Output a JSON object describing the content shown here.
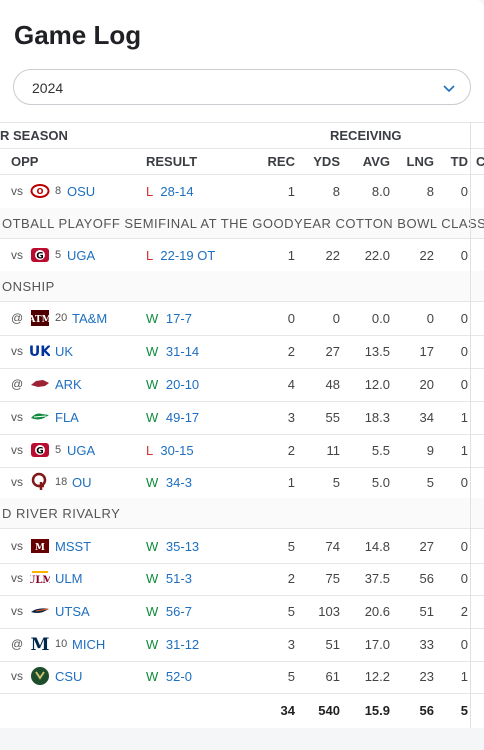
{
  "title": "Game Log",
  "season_select": {
    "value": "2024"
  },
  "headers": {
    "group_left": "R SEASON",
    "group_right": "RECEIVING",
    "opp": "OPP",
    "result": "RESULT",
    "rec": "REC",
    "yds": "YDS",
    "avg": "AVG",
    "lng": "LNG",
    "td": "TD",
    "cut": "C"
  },
  "notes": {
    "n1": "OTBALL PLAYOFF SEMIFINAL AT THE GOODYEAR COTTON BOWL CLASSIC",
    "n2": "ONSHIP",
    "n3": "D RIVER RIVALRY"
  },
  "games": [
    {
      "vs": "vs",
      "logo": "ohio-state-logo",
      "logo_color": "#bb0000",
      "rank": "8",
      "team": "OSU",
      "wl": "L",
      "score": "28-14",
      "rec": "1",
      "yds": "8",
      "avg": "8.0",
      "lng": "8",
      "td": "0"
    },
    {
      "vs": "vs",
      "logo": "georgia-logo",
      "logo_color": "#ba0c2f",
      "rank": "5",
      "team": "UGA",
      "wl": "L",
      "score": "22-19 OT",
      "rec": "1",
      "yds": "22",
      "avg": "22.0",
      "lng": "22",
      "td": "0"
    },
    {
      "vs": "@",
      "logo": "texas-am-logo",
      "logo_color": "#500000",
      "rank": "20",
      "team": "TA&M",
      "wl": "W",
      "score": "17-7",
      "rec": "0",
      "yds": "0",
      "avg": "0.0",
      "lng": "0",
      "td": "0"
    },
    {
      "vs": "vs",
      "logo": "kentucky-logo",
      "logo_color": "#0033a0",
      "rank": "",
      "team": "UK",
      "wl": "W",
      "score": "31-14",
      "rec": "2",
      "yds": "27",
      "avg": "13.5",
      "lng": "17",
      "td": "0"
    },
    {
      "vs": "@",
      "logo": "arkansas-logo",
      "logo_color": "#9d2235",
      "rank": "",
      "team": "ARK",
      "wl": "W",
      "score": "20-10",
      "rec": "4",
      "yds": "48",
      "avg": "12.0",
      "lng": "20",
      "td": "0"
    },
    {
      "vs": "vs",
      "logo": "florida-logo",
      "logo_color": "#0021a5",
      "rank": "",
      "team": "FLA",
      "wl": "W",
      "score": "49-17",
      "rec": "3",
      "yds": "55",
      "avg": "18.3",
      "lng": "34",
      "td": "1"
    },
    {
      "vs": "vs",
      "logo": "georgia-logo",
      "logo_color": "#ba0c2f",
      "rank": "5",
      "team": "UGA",
      "wl": "L",
      "score": "30-15",
      "rec": "2",
      "yds": "11",
      "avg": "5.5",
      "lng": "9",
      "td": "1"
    },
    {
      "vs": "vs",
      "logo": "oklahoma-logo",
      "logo_color": "#841617",
      "rank": "18",
      "team": "OU",
      "wl": "W",
      "score": "34-3",
      "rec": "1",
      "yds": "5",
      "avg": "5.0",
      "lng": "5",
      "td": "0"
    },
    {
      "vs": "vs",
      "logo": "mississippi-state-logo",
      "logo_color": "#660000",
      "rank": "",
      "team": "MSST",
      "wl": "W",
      "score": "35-13",
      "rec": "5",
      "yds": "74",
      "avg": "14.8",
      "lng": "27",
      "td": "0"
    },
    {
      "vs": "vs",
      "logo": "ulm-logo",
      "logo_color": "#840029",
      "rank": "",
      "team": "ULM",
      "wl": "W",
      "score": "51-3",
      "rec": "2",
      "yds": "75",
      "avg": "37.5",
      "lng": "56",
      "td": "0"
    },
    {
      "vs": "vs",
      "logo": "utsa-logo",
      "logo_color": "#0c2340",
      "rank": "",
      "team": "UTSA",
      "wl": "W",
      "score": "56-7",
      "rec": "5",
      "yds": "103",
      "avg": "20.6",
      "lng": "51",
      "td": "2"
    },
    {
      "vs": "@",
      "logo": "michigan-logo",
      "logo_color": "#00274c",
      "rank": "10",
      "team": "MICH",
      "wl": "W",
      "score": "31-12",
      "rec": "3",
      "yds": "51",
      "avg": "17.0",
      "lng": "33",
      "td": "0"
    },
    {
      "vs": "vs",
      "logo": "colorado-state-logo",
      "logo_color": "#1e4d2b",
      "rank": "",
      "team": "CSU",
      "wl": "W",
      "score": "52-0",
      "rec": "5",
      "yds": "61",
      "avg": "12.2",
      "lng": "23",
      "td": "1"
    }
  ],
  "totals": {
    "rec": "34",
    "yds": "540",
    "avg": "15.9",
    "lng": "56",
    "td": "5"
  }
}
